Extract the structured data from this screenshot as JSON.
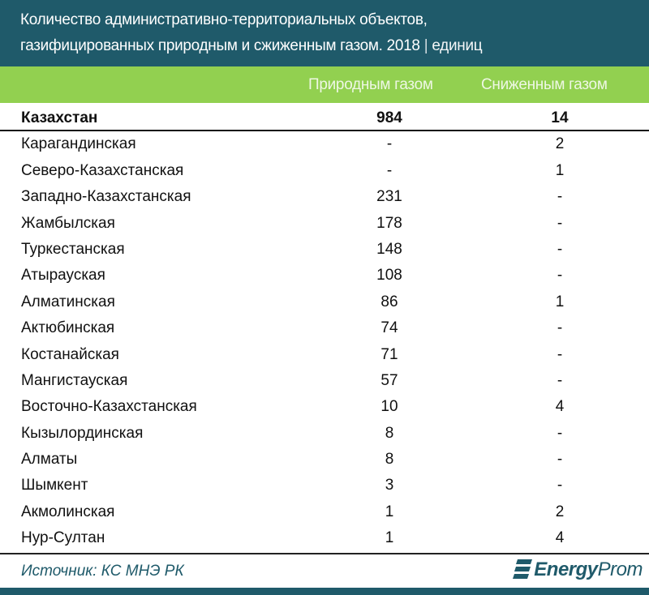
{
  "title": {
    "line1": "Количество административно-территориальных объектов,",
    "line2": "газифицированных природным и сжиженным газом. 2018",
    "separator": "|",
    "unit": "единиц"
  },
  "columns": [
    "Природным газом",
    "Сниженным газом"
  ],
  "total": {
    "name": "Казахстан",
    "natural": "984",
    "liquefied": "14"
  },
  "rows": [
    {
      "name": "Карагандинская",
      "natural": "-",
      "liquefied": "2"
    },
    {
      "name": "Северо-Казахстанская",
      "natural": "-",
      "liquefied": "1"
    },
    {
      "name": "Западно-Казахстанская",
      "natural": "231",
      "liquefied": "-"
    },
    {
      "name": "Жамбылская",
      "natural": "178",
      "liquefied": "-"
    },
    {
      "name": "Туркестанская",
      "natural": "148",
      "liquefied": "-"
    },
    {
      "name": "Атырауская",
      "natural": "108",
      "liquefied": "-"
    },
    {
      "name": "Алматинская",
      "natural": "86",
      "liquefied": "1"
    },
    {
      "name": "Актюбинская",
      "natural": "74",
      "liquefied": "-"
    },
    {
      "name": "Костанайская",
      "natural": "71",
      "liquefied": "-"
    },
    {
      "name": "Мангистауская",
      "natural": "57",
      "liquefied": "-"
    },
    {
      "name": "Восточно-Казахстанская",
      "natural": "10",
      "liquefied": "4"
    },
    {
      "name": "Кызылординская",
      "natural": "8",
      "liquefied": "-"
    },
    {
      "name": "Алматы",
      "natural": "8",
      "liquefied": "-"
    },
    {
      "name": "Шымкент",
      "natural": "3",
      "liquefied": "-"
    },
    {
      "name": "Акмолинская",
      "natural": "1",
      "liquefied": "2"
    },
    {
      "name": "Нур-Султан",
      "natural": "1",
      "liquefied": "4"
    }
  ],
  "source": "Источник: КС МНЭ РК",
  "logo": {
    "bold": "Energy",
    "light": "Prom"
  },
  "colors": {
    "header": "#1f5a6a",
    "band": "#92d050"
  }
}
